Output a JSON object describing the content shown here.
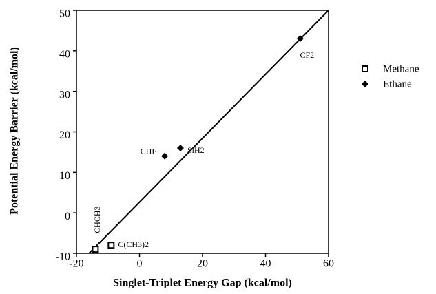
{
  "chart_data": {
    "type": "scatter",
    "x_label": "Singlet-Triplet Energy Gap (kcal/mol)",
    "y_label": "Potential Energy Barrier (kcal/mol)",
    "xlim": [
      -20,
      60
    ],
    "xticks": [
      -20,
      0,
      20,
      40,
      60
    ],
    "ylim": [
      -10,
      50
    ],
    "yticks": [
      -10,
      0,
      10,
      20,
      30,
      40,
      50
    ],
    "series": [
      {
        "name": "Methane",
        "marker": "square",
        "color": "#000000",
        "x": [
          -14,
          -9
        ],
        "values": [
          -9,
          -8
        ],
        "point_labels": [
          "CHCH3",
          "C(CH3)2"
        ]
      },
      {
        "name": "Ethane",
        "marker": "diamond",
        "color": "#000000",
        "x": [
          8,
          13,
          51
        ],
        "values": [
          14,
          16,
          43
        ],
        "point_labels": [
          "CHF",
          "SiH2",
          "CF2"
        ]
      }
    ],
    "lines": [
      {
        "x": [
          -16,
          60
        ],
        "values": [
          -10,
          50
        ],
        "color": "#000000"
      }
    ]
  }
}
